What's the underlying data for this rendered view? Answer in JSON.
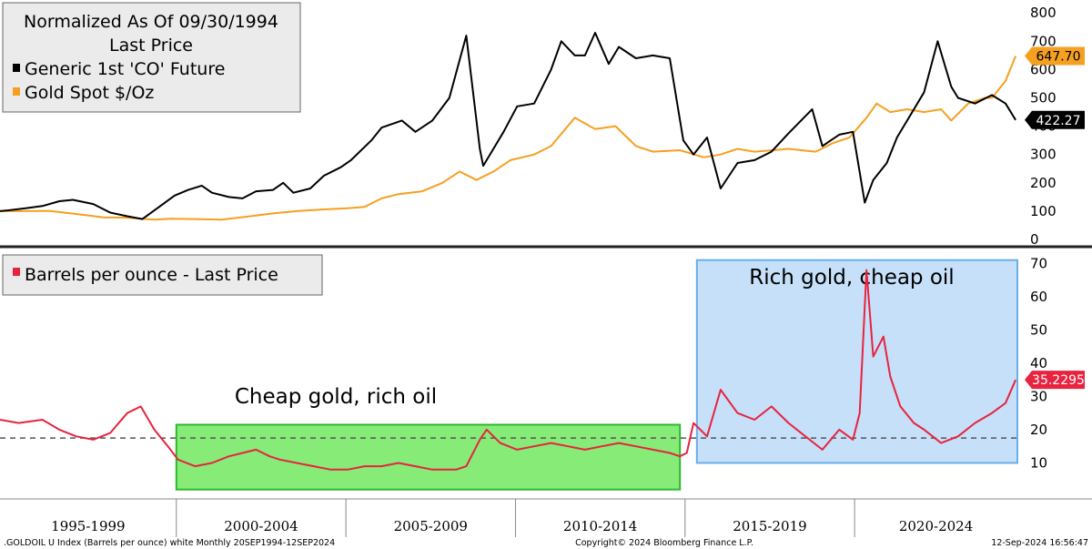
{
  "chart_data": [
    {
      "type": "line",
      "legend": {
        "title_line1": "Normalized As Of 09/30/1994",
        "title_line2": "Last Price",
        "placement": "top-left"
      },
      "yticks": [
        0,
        100,
        200,
        300,
        400,
        500,
        600,
        700,
        800
      ],
      "ylim": [
        0,
        820
      ],
      "xlim": [
        1994.75,
        2024.75
      ],
      "series": [
        {
          "name": "Generic 1st 'CO' Future",
          "color": "#000000",
          "last_value": "422.27",
          "x": [
            1994.75,
            1995.0,
            1995.5,
            1996.0,
            1996.5,
            1996.9,
            1997.5,
            1998.0,
            1998.5,
            1998.95,
            1999.5,
            1999.9,
            2000.3,
            2000.7,
            2001.0,
            2001.5,
            2001.9,
            2002.3,
            2002.8,
            2003.1,
            2003.4,
            2003.9,
            2004.3,
            2004.8,
            2005.1,
            2005.7,
            2006.0,
            2006.6,
            2007.0,
            2007.5,
            2008.0,
            2008.5,
            2008.9,
            2009.0,
            2009.3,
            2009.6,
            2010.0,
            2010.5,
            2011.0,
            2011.3,
            2011.7,
            2012.0,
            2012.3,
            2012.7,
            2013.0,
            2013.5,
            2014.0,
            2014.5,
            2014.9,
            2015.2,
            2015.6,
            2016.0,
            2016.5,
            2017.0,
            2017.5,
            2018.0,
            2018.7,
            2019.0,
            2019.5,
            2019.9,
            2020.25,
            2020.5,
            2020.9,
            2021.2,
            2021.6,
            2022.0,
            2022.4,
            2022.8,
            2023.0,
            2023.5,
            2024.0,
            2024.4,
            2024.7
          ],
          "values": [
            100,
            103,
            110,
            118,
            135,
            140,
            125,
            95,
            82,
            72,
            120,
            155,
            175,
            190,
            165,
            150,
            145,
            170,
            175,
            200,
            165,
            180,
            225,
            255,
            280,
            350,
            395,
            420,
            380,
            420,
            500,
            720,
            320,
            260,
            320,
            380,
            470,
            480,
            600,
            700,
            650,
            650,
            730,
            620,
            680,
            640,
            650,
            640,
            350,
            300,
            360,
            180,
            270,
            280,
            310,
            375,
            460,
            330,
            370,
            380,
            130,
            210,
            270,
            360,
            440,
            520,
            700,
            540,
            500,
            480,
            510,
            480,
            422
          ]
        },
        {
          "name": "Gold Spot $/Oz",
          "color": "#f5a020",
          "last_value": "647.70",
          "x": [
            1994.75,
            1995.5,
            1996.2,
            1997.0,
            1997.8,
            1998.5,
            1999.3,
            1999.8,
            2000.5,
            2001.3,
            2002.0,
            2002.8,
            2003.5,
            2004.3,
            2005.0,
            2005.5,
            2006.0,
            2006.5,
            2007.2,
            2007.8,
            2008.3,
            2008.8,
            2009.3,
            2009.8,
            2010.5,
            2011.0,
            2011.7,
            2012.3,
            2012.9,
            2013.5,
            2014.0,
            2014.8,
            2015.5,
            2016.0,
            2016.5,
            2017.0,
            2018.0,
            2018.8,
            2019.3,
            2019.8,
            2020.3,
            2020.6,
            2021.0,
            2021.5,
            2022.0,
            2022.5,
            2022.8,
            2023.3,
            2023.8,
            2024.0,
            2024.4,
            2024.7
          ],
          "values": [
            100,
            100,
            101,
            90,
            78,
            77,
            70,
            73,
            72,
            70,
            80,
            92,
            100,
            106,
            110,
            115,
            145,
            160,
            170,
            200,
            240,
            210,
            240,
            280,
            300,
            330,
            430,
            390,
            400,
            330,
            310,
            315,
            290,
            300,
            320,
            310,
            320,
            310,
            340,
            360,
            430,
            480,
            450,
            460,
            450,
            460,
            420,
            480,
            500,
            500,
            560,
            648
          ]
        }
      ]
    },
    {
      "type": "line",
      "legend": {
        "placement": "top-left"
      },
      "yticks": [
        10,
        20,
        30,
        40,
        50,
        60,
        70
      ],
      "ylim": [
        0,
        72
      ],
      "xlim": [
        1994.75,
        2024.75
      ],
      "x_categories": [
        "1995-1999",
        "2000-2004",
        "2005-2009",
        "2010-2014",
        "2015-2019",
        "2020-2024"
      ],
      "series": [
        {
          "name": "Barrels per ounce - Last Price",
          "color": "#e8233f",
          "last_value": "35.2295",
          "x": [
            1994.75,
            1995.3,
            1996.0,
            1996.5,
            1997.0,
            1997.5,
            1998.0,
            1998.5,
            1998.9,
            1999.3,
            1999.7,
            2000.0,
            2000.5,
            2001.0,
            2001.5,
            2001.9,
            2002.3,
            2002.7,
            2003.0,
            2003.5,
            2004.0,
            2004.5,
            2005.0,
            2005.5,
            2006.0,
            2006.5,
            2007.0,
            2007.5,
            2008.2,
            2008.5,
            2008.9,
            2009.1,
            2009.5,
            2010.0,
            2010.5,
            2011.0,
            2011.5,
            2012.0,
            2012.5,
            2013.0,
            2013.5,
            2014.0,
            2014.5,
            2014.8,
            2015.0,
            2015.2,
            2015.6,
            2016.0,
            2016.5,
            2017.0,
            2017.5,
            2018.0,
            2018.5,
            2019.0,
            2019.5,
            2019.9,
            2020.1,
            2020.3,
            2020.5,
            2020.8,
            2021.0,
            2021.3,
            2021.7,
            2022.0,
            2022.5,
            2023.0,
            2023.5,
            2024.0,
            2024.4,
            2024.7
          ],
          "values": [
            23,
            22,
            23,
            20,
            18,
            17,
            19,
            25,
            27,
            20,
            15,
            11,
            9,
            10,
            12,
            13,
            14,
            12,
            11,
            10,
            9,
            8,
            8,
            9,
            9,
            10,
            9,
            8,
            8,
            9,
            17,
            20,
            16,
            14,
            15,
            16,
            15,
            14,
            15,
            16,
            15,
            14,
            13,
            12,
            13,
            22,
            18,
            32,
            25,
            23,
            27,
            22,
            18,
            14,
            20,
            17,
            25,
            68,
            42,
            48,
            36,
            27,
            22,
            20,
            16,
            18,
            22,
            25,
            28,
            35
          ]
        }
      ],
      "reference_line": 17.5,
      "annotations": [
        {
          "text": "Cheap gold, rich oil",
          "color": "#5ee44a",
          "x0": 1999.95,
          "x1": 2014.8,
          "y0": 2.0,
          "y1": 21.5
        },
        {
          "text": "Rich gold, cheap oil",
          "color": "#9fcbf3",
          "x0": 2015.3,
          "x1": 2024.75,
          "y0": 10.0,
          "y1": 71.0
        }
      ]
    }
  ],
  "footer": {
    "left": ".GOLDOIL U Index (Barrels per ounce) white  Monthly 20SEP1994-12SEP2024",
    "center": "Copyright© 2024 Bloomberg Finance L.P.",
    "right": "12-Sep-2024 16:56:47"
  }
}
